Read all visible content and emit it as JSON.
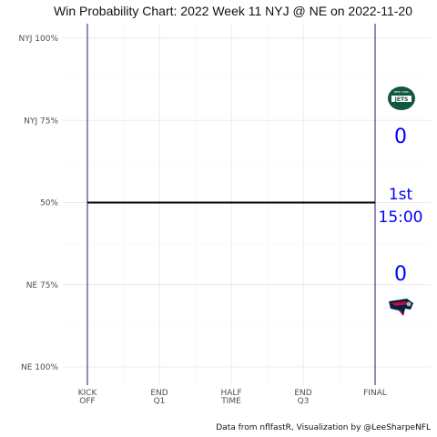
{
  "chart_data": {
    "type": "line",
    "title": "Win Probability Chart: 2022 Week 11 NYJ @ NE on 2022-11-20",
    "caption": "Data from nflfastR, Visualization by @LeeSharpeNFL",
    "y_ticks": [
      {
        "value": 100,
        "label": "NYJ 100%"
      },
      {
        "value": 75,
        "label": "NYJ 75%"
      },
      {
        "value": 50,
        "label": "50%"
      },
      {
        "value": 25,
        "label": "NE 75%"
      },
      {
        "value": 0,
        "label": "NE 100%"
      }
    ],
    "ylim": [
      0,
      100
    ],
    "x_ticks": [
      {
        "value": 0,
        "lines": [
          "KICK",
          "OFF"
        ]
      },
      {
        "value": 15,
        "lines": [
          "END",
          "Q1"
        ]
      },
      {
        "value": 30,
        "lines": [
          "HALF",
          "TIME"
        ]
      },
      {
        "value": 45,
        "lines": [
          "END",
          "Q3"
        ]
      },
      {
        "value": 60,
        "lines": [
          "FINAL",
          ""
        ]
      }
    ],
    "xlim": [
      0,
      60
    ],
    "series": [
      {
        "x": [
          0,
          60
        ],
        "y": [
          50,
          50
        ],
        "color": "#000000"
      }
    ],
    "grid": true,
    "away": {
      "logo": "NYJ logo",
      "score": "0",
      "logo_color": "#125740"
    },
    "home": {
      "logo": "NE logo",
      "score": "0",
      "logo_color": "#002244"
    },
    "game_state": {
      "quarter": "1st",
      "clock": "15:00"
    },
    "text_color": "#0000ff",
    "line_color": "#1e1e6e"
  }
}
